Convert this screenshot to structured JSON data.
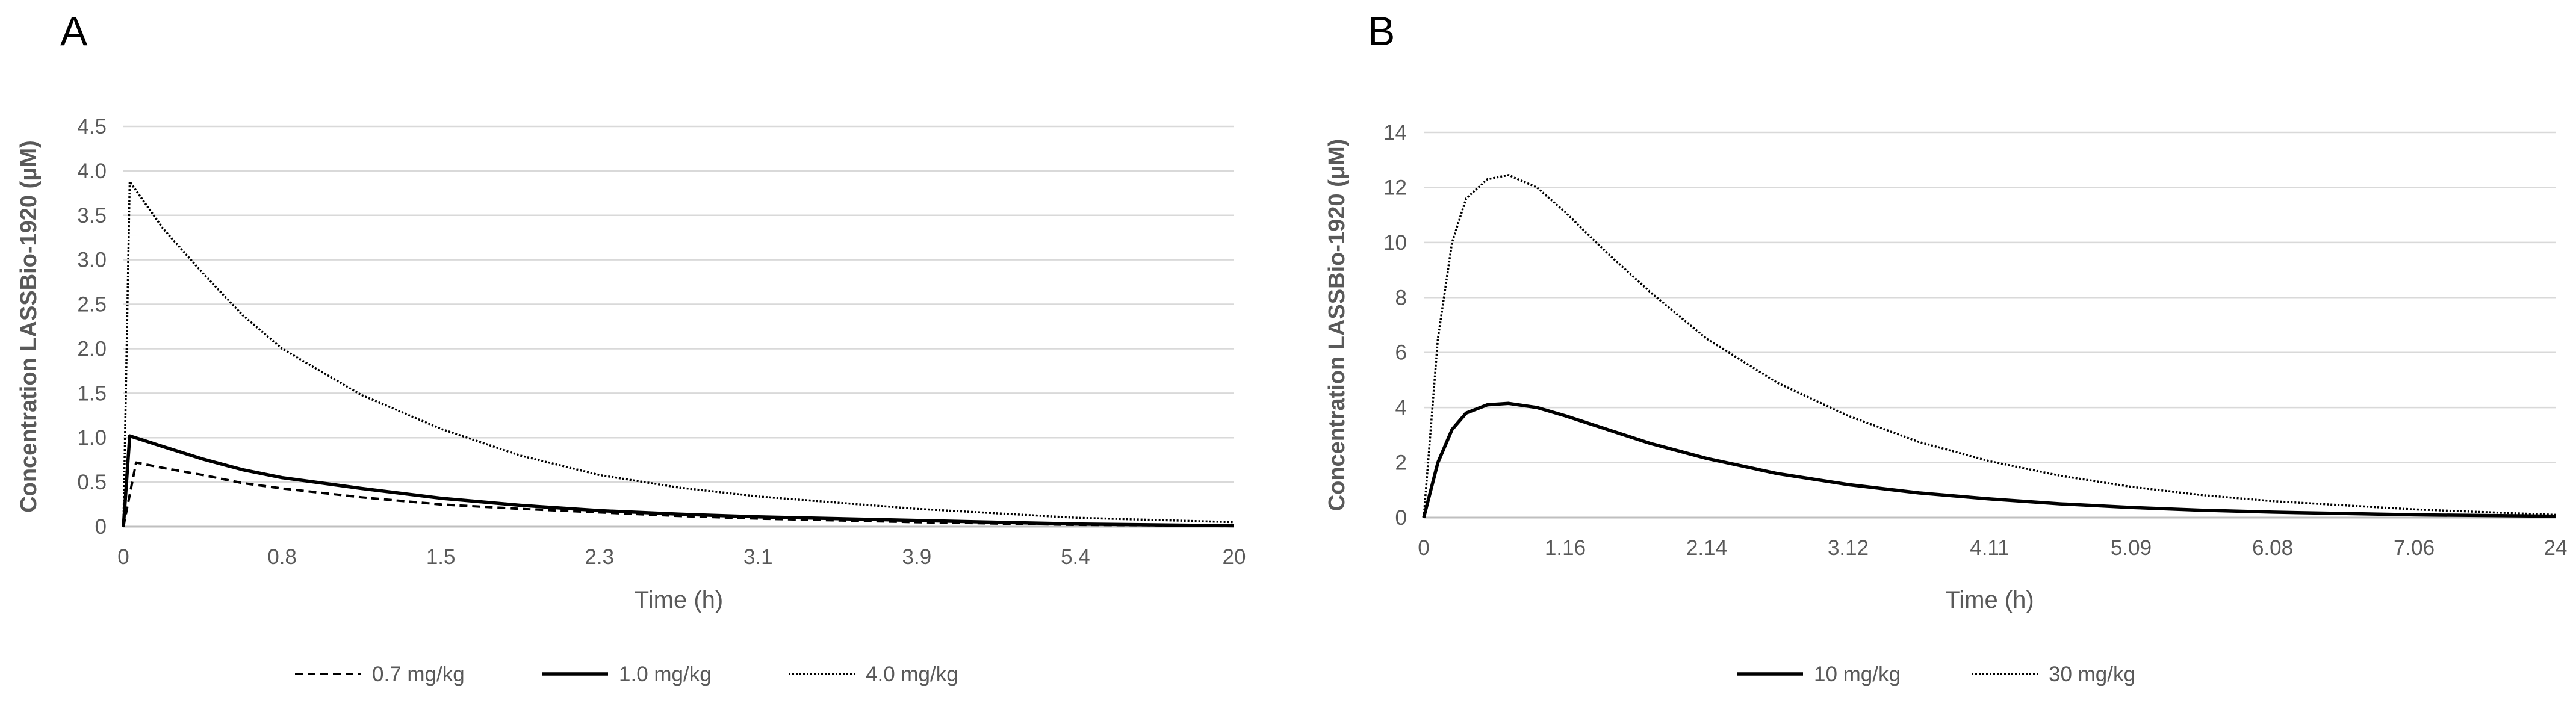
{
  "chart_data": [
    {
      "panel": "A",
      "type": "line",
      "title": "",
      "xlabel": "Time (h)",
      "ylabel": "Concentration LASSBio-1920 (μM)",
      "categories": [
        "0",
        "0.8",
        "1.5",
        "2.3",
        "3.1",
        "3.9",
        "5.4",
        "20"
      ],
      "ylim": [
        0,
        4.5
      ],
      "yticks": [
        "0",
        "0.5",
        "1.0",
        "1.5",
        "2.0",
        "2.5",
        "3.0",
        "3.5",
        "4.0",
        "4.5"
      ],
      "grid": true,
      "legend": "bottom",
      "series": [
        {
          "name": "0.7 mg/kg",
          "style": "dashed",
          "x": [
            0,
            0.08,
            0.25,
            0.5,
            0.75,
            1,
            1.5,
            2,
            2.5,
            3,
            3.5,
            4,
            5,
            6,
            7
          ],
          "values": [
            0,
            0.72,
            0.66,
            0.58,
            0.49,
            0.43,
            0.33,
            0.25,
            0.2,
            0.16,
            0.12,
            0.09,
            0.05,
            0.02,
            0.01
          ]
        },
        {
          "name": "1.0 mg/kg",
          "style": "solid",
          "x": [
            0,
            0.04,
            0.25,
            0.5,
            0.75,
            1,
            1.5,
            2,
            2.5,
            3,
            3.5,
            4,
            5,
            6,
            7
          ],
          "values": [
            0,
            1.02,
            0.9,
            0.76,
            0.64,
            0.55,
            0.43,
            0.32,
            0.24,
            0.18,
            0.14,
            0.11,
            0.07,
            0.03,
            0.01
          ]
        },
        {
          "name": "4.0 mg/kg",
          "style": "dotted",
          "x": [
            0,
            0.04,
            0.25,
            0.5,
            0.75,
            1,
            1.5,
            2,
            2.5,
            3,
            3.5,
            4,
            5,
            6,
            7
          ],
          "values": [
            0,
            3.88,
            3.35,
            2.85,
            2.38,
            2.0,
            1.48,
            1.1,
            0.8,
            0.58,
            0.44,
            0.34,
            0.2,
            0.1,
            0.05
          ]
        }
      ]
    },
    {
      "panel": "B",
      "type": "line",
      "title": "",
      "xlabel": "Time (h)",
      "ylabel": "Concentration LASSBio-1920 (μM)",
      "categories": [
        "0",
        "1.16",
        "2.14",
        "3.12",
        "4.11",
        "5.09",
        "6.08",
        "7.06",
        "24"
      ],
      "ylim": [
        0,
        14
      ],
      "yticks": [
        "0",
        "2",
        "4",
        "6",
        "8",
        "10",
        "12",
        "14"
      ],
      "grid": true,
      "legend": "bottom",
      "series": [
        {
          "name": "10 mg/kg",
          "style": "solid",
          "x": [
            0,
            0.1,
            0.2,
            0.3,
            0.45,
            0.6,
            0.8,
            1.0,
            1.3,
            1.6,
            2.0,
            2.5,
            3.0,
            3.5,
            4.0,
            4.5,
            5.0,
            5.5,
            6.0,
            7.0,
            8.0
          ],
          "values": [
            0,
            2.0,
            3.2,
            3.8,
            4.1,
            4.15,
            4.0,
            3.7,
            3.2,
            2.7,
            2.15,
            1.6,
            1.2,
            0.9,
            0.68,
            0.5,
            0.37,
            0.27,
            0.2,
            0.1,
            0.05
          ]
        },
        {
          "name": "30 mg/kg",
          "style": "dotted",
          "x": [
            0,
            0.1,
            0.2,
            0.3,
            0.45,
            0.6,
            0.8,
            1.0,
            1.3,
            1.6,
            2.0,
            2.5,
            3.0,
            3.5,
            4.0,
            4.5,
            5.0,
            5.5,
            6.0,
            7.0,
            8.0
          ],
          "values": [
            0,
            6.5,
            10.0,
            11.6,
            12.3,
            12.45,
            12.0,
            11.1,
            9.6,
            8.2,
            6.5,
            4.9,
            3.7,
            2.75,
            2.05,
            1.52,
            1.12,
            0.82,
            0.6,
            0.3,
            0.1
          ]
        }
      ]
    }
  ]
}
